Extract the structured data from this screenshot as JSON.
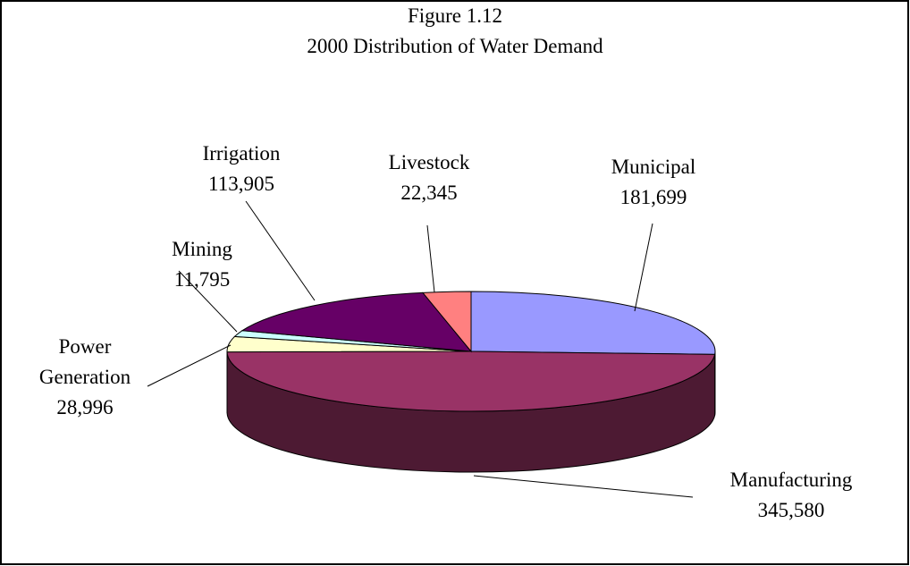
{
  "chart_data": {
    "type": "pie",
    "title": "Figure 1.12",
    "subtitle": "2000 Distribution of Water Demand",
    "categories": [
      "Municipal",
      "Manufacturing",
      "Power Generation",
      "Mining",
      "Irrigation",
      "Livestock"
    ],
    "values": [
      181699,
      345580,
      28996,
      11795,
      113905,
      22345
    ],
    "value_labels": [
      "181,699",
      "345,580",
      "28,996",
      "11,795",
      "113,905",
      "22,345"
    ],
    "colors": [
      "#9999ff",
      "#993366",
      "#ffffcc",
      "#ccffff",
      "#660066",
      "#ff8080"
    ]
  }
}
